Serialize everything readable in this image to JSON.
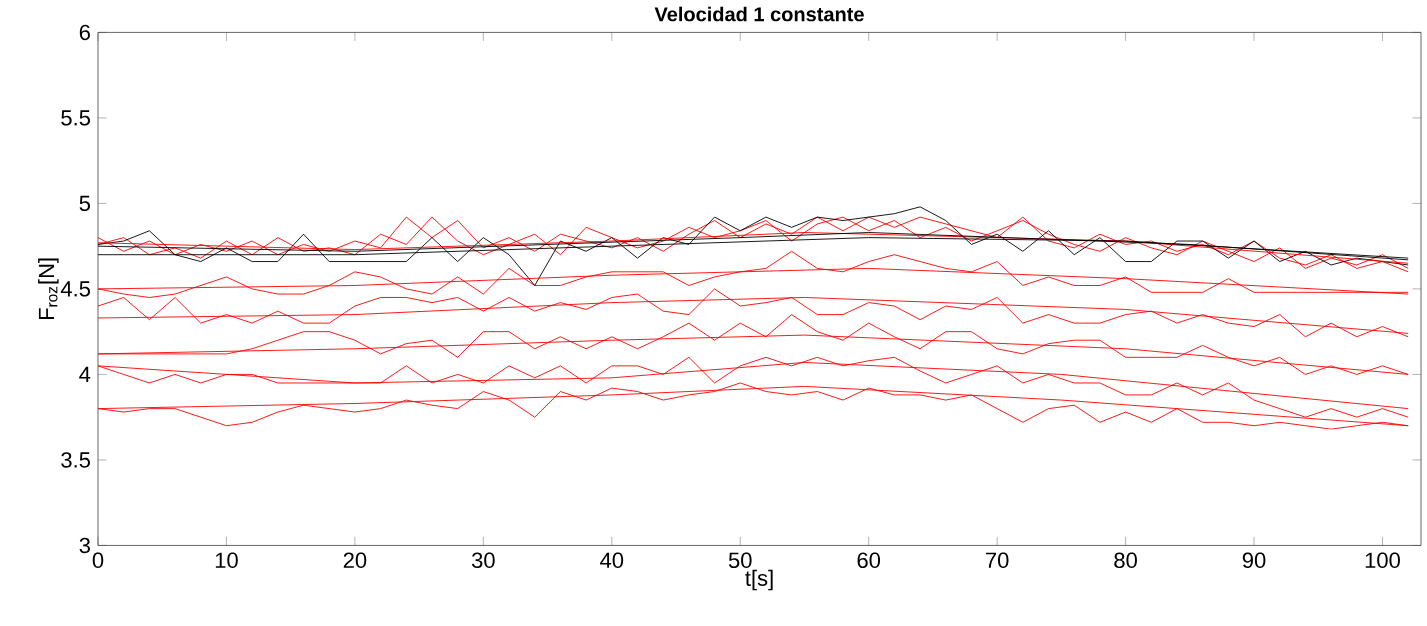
{
  "chart_data": {
    "type": "line",
    "title": "Velocidad 1 constante",
    "xlabel": "t[s]",
    "ylabel": "F$_{roz}$[N]",
    "x": [
      0,
      2,
      4,
      6,
      8,
      10,
      12,
      14,
      16,
      18,
      20,
      22,
      24,
      26,
      28,
      30,
      32,
      34,
      36,
      38,
      40,
      42,
      44,
      46,
      48,
      50,
      52,
      54,
      56,
      58,
      60,
      62,
      64,
      66,
      68,
      70,
      72,
      74,
      76,
      78,
      80,
      82,
      84,
      86,
      88,
      90,
      92,
      94,
      96,
      98,
      100,
      102
    ],
    "xlim": [
      0,
      103
    ],
    "xticks": [
      0,
      10,
      20,
      30,
      40,
      50,
      60,
      70,
      80,
      90,
      100
    ],
    "ylim": [
      3,
      6
    ],
    "yticks": [
      3,
      3.5,
      4,
      4.5,
      5,
      5.5,
      6
    ],
    "series": [
      {
        "color": "#ff0000",
        "values": [
          4.8,
          4.72,
          4.78,
          4.7,
          4.76,
          4.72,
          4.78,
          4.7,
          4.76,
          4.72,
          4.78,
          4.74,
          4.92,
          4.8,
          4.9,
          4.74,
          4.8,
          4.72,
          4.82,
          4.78,
          4.74,
          4.8,
          4.72,
          4.82,
          4.9,
          4.8,
          4.88,
          4.82,
          4.92,
          4.84,
          4.92,
          4.86,
          4.92,
          4.88,
          4.84,
          4.8,
          4.92,
          4.78,
          4.74,
          4.82,
          4.76,
          4.78,
          4.72,
          4.76,
          4.7,
          4.78,
          4.68,
          4.64,
          4.7,
          4.62,
          4.66,
          4.6
        ]
      },
      {
        "color": "#ff0000",
        "values": [
          4.76,
          4.8,
          4.7,
          4.74,
          4.68,
          4.78,
          4.7,
          4.8,
          4.72,
          4.74,
          4.7,
          4.82,
          4.76,
          4.92,
          4.78,
          4.7,
          4.76,
          4.82,
          4.7,
          4.86,
          4.8,
          4.74,
          4.78,
          4.86,
          4.8,
          4.84,
          4.9,
          4.78,
          4.88,
          4.92,
          4.84,
          4.9,
          4.8,
          4.86,
          4.78,
          4.84,
          4.9,
          4.82,
          4.76,
          4.72,
          4.8,
          4.74,
          4.7,
          4.78,
          4.72,
          4.66,
          4.74,
          4.62,
          4.68,
          4.64,
          4.7,
          4.62
        ]
      },
      {
        "color": "#ff0000",
        "values": [
          4.5,
          4.47,
          4.45,
          4.47,
          4.52,
          4.57,
          4.5,
          4.47,
          4.47,
          4.52,
          4.6,
          4.57,
          4.5,
          4.47,
          4.57,
          4.47,
          4.62,
          4.52,
          4.52,
          4.57,
          4.6,
          4.6,
          4.6,
          4.52,
          4.57,
          4.6,
          4.62,
          4.72,
          4.62,
          4.6,
          4.66,
          4.7,
          4.66,
          4.62,
          4.6,
          4.66,
          4.52,
          4.57,
          4.52,
          4.52,
          4.57,
          4.48,
          4.48,
          4.48,
          4.56,
          4.48,
          4.48,
          4.48,
          4.48,
          4.48,
          4.48,
          4.48
        ]
      },
      {
        "color": "#ff0000",
        "values": [
          4.4,
          4.45,
          4.32,
          4.45,
          4.3,
          4.35,
          4.3,
          4.37,
          4.3,
          4.3,
          4.4,
          4.45,
          4.45,
          4.42,
          4.45,
          4.37,
          4.45,
          4.37,
          4.42,
          4.38,
          4.45,
          4.47,
          4.37,
          4.35,
          4.5,
          4.4,
          4.42,
          4.45,
          4.35,
          4.35,
          4.42,
          4.4,
          4.32,
          4.4,
          4.38,
          4.45,
          4.3,
          4.35,
          4.3,
          4.3,
          4.35,
          4.37,
          4.3,
          4.35,
          4.3,
          4.28,
          4.35,
          4.22,
          4.3,
          4.22,
          4.28,
          4.22
        ]
      },
      {
        "color": "#ff0000",
        "values": [
          4.12,
          4.12,
          4.12,
          4.12,
          4.12,
          4.12,
          4.15,
          4.2,
          4.25,
          4.25,
          4.2,
          4.12,
          4.18,
          4.2,
          4.1,
          4.25,
          4.25,
          4.15,
          4.22,
          4.15,
          4.22,
          4.15,
          4.22,
          4.3,
          4.2,
          4.3,
          4.22,
          4.35,
          4.25,
          4.2,
          4.3,
          4.22,
          4.15,
          4.25,
          4.25,
          4.15,
          4.12,
          4.18,
          4.2,
          4.2,
          4.1,
          4.1,
          4.1,
          4.17,
          4.1,
          4.05,
          4.1,
          4.0,
          4.05,
          4.0,
          4.05,
          4.0
        ]
      },
      {
        "color": "#ff0000",
        "values": [
          4.05,
          4.0,
          3.95,
          4.0,
          3.95,
          4.0,
          4.0,
          3.95,
          3.95,
          3.95,
          3.95,
          3.95,
          4.05,
          3.95,
          4.0,
          3.95,
          4.05,
          3.98,
          4.05,
          3.95,
          4.05,
          4.05,
          4.0,
          4.1,
          3.95,
          4.05,
          4.1,
          4.05,
          4.1,
          4.05,
          4.08,
          4.1,
          4.02,
          3.95,
          4.0,
          4.05,
          3.95,
          4.0,
          3.95,
          3.95,
          3.88,
          3.88,
          3.95,
          3.88,
          3.95,
          3.85,
          3.8,
          3.75,
          3.8,
          3.75,
          3.8,
          3.75
        ]
      },
      {
        "color": "#ff0000",
        "values": [
          3.8,
          3.78,
          3.8,
          3.8,
          3.75,
          3.7,
          3.72,
          3.78,
          3.82,
          3.8,
          3.78,
          3.8,
          3.85,
          3.82,
          3.8,
          3.9,
          3.85,
          3.75,
          3.9,
          3.85,
          3.92,
          3.9,
          3.85,
          3.88,
          3.9,
          3.95,
          3.9,
          3.88,
          3.9,
          3.85,
          3.92,
          3.88,
          3.88,
          3.85,
          3.88,
          3.8,
          3.72,
          3.8,
          3.82,
          3.72,
          3.78,
          3.72,
          3.8,
          3.72,
          3.72,
          3.7,
          3.72,
          3.7,
          3.68,
          3.7,
          3.72,
          3.7
        ]
      },
      {
        "color": "#000000",
        "values": [
          4.76,
          4.78,
          4.84,
          4.7,
          4.66,
          4.74,
          4.66,
          4.66,
          4.82,
          4.66,
          4.66,
          4.66,
          4.66,
          4.8,
          4.66,
          4.8,
          4.7,
          4.52,
          4.78,
          4.72,
          4.8,
          4.68,
          4.8,
          4.76,
          4.92,
          4.84,
          4.92,
          4.86,
          4.92,
          4.9,
          4.92,
          4.94,
          4.98,
          4.9,
          4.76,
          4.82,
          4.72,
          4.84,
          4.7,
          4.8,
          4.66,
          4.66,
          4.78,
          4.78,
          4.68,
          4.78,
          4.66,
          4.72,
          4.64,
          4.68,
          4.66,
          4.64
        ]
      },
      {
        "color": "#ff0000",
        "x": [
          0,
          20,
          40,
          55,
          80,
          102
        ],
        "values": [
          4.77,
          4.73,
          4.78,
          4.83,
          4.78,
          4.65
        ]
      },
      {
        "color": "#ff0000",
        "x": [
          0,
          20,
          40,
          60,
          80,
          102
        ],
        "values": [
          4.5,
          4.52,
          4.58,
          4.62,
          4.56,
          4.47
        ]
      },
      {
        "color": "#ff0000",
        "x": [
          0,
          20,
          40,
          55,
          80,
          102
        ],
        "values": [
          4.33,
          4.35,
          4.42,
          4.45,
          4.38,
          4.24
        ]
      },
      {
        "color": "#ff0000",
        "x": [
          0,
          20,
          40,
          55,
          80,
          102
        ],
        "values": [
          4.12,
          4.15,
          4.2,
          4.23,
          4.15,
          4.0
        ]
      },
      {
        "color": "#ff0000",
        "x": [
          0,
          20,
          40,
          55,
          75,
          102
        ],
        "values": [
          4.05,
          3.95,
          3.98,
          4.07,
          4.0,
          3.8
        ]
      },
      {
        "color": "#ff0000",
        "x": [
          0,
          20,
          40,
          55,
          75,
          102
        ],
        "values": [
          3.8,
          3.83,
          3.88,
          3.93,
          3.85,
          3.7
        ]
      },
      {
        "color": "#000000",
        "x": [
          0,
          20,
          40,
          60,
          80,
          102
        ],
        "values": [
          4.7,
          4.7,
          4.75,
          4.8,
          4.78,
          4.68
        ]
      },
      {
        "color": "#000000",
        "x": [
          0,
          20,
          50,
          60,
          85,
          102
        ],
        "values": [
          4.75,
          4.72,
          4.8,
          4.83,
          4.76,
          4.67
        ]
      }
    ]
  }
}
